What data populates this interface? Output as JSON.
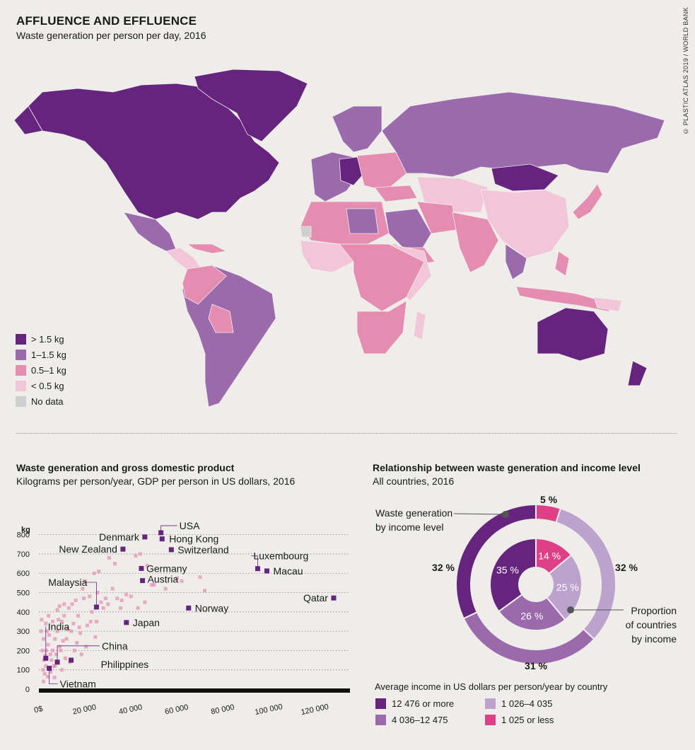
{
  "header": {
    "title": "AFFLUENCE AND EFFLUENCE",
    "subtitle": "Waste generation per person per day, 2016",
    "credit": "© PLASTIC ATLAS 2019 / WORLD BANK"
  },
  "colors": {
    "gt15": "#66247f",
    "c1_15": "#9a6aac",
    "c05_1": "#e58cb0",
    "lt05": "#f2c6d8",
    "nodata": "#cfcfcf",
    "hot": "#df3f86"
  },
  "map_legend": [
    {
      "label": "> 1.5 kg",
      "color": "#66247f"
    },
    {
      "label": "1–1.5 kg",
      "color": "#9a6aac"
    },
    {
      "label": "0.5–1 kg",
      "color": "#e58cb0"
    },
    {
      "label": "< 0.5 kg",
      "color": "#f2c6d8"
    },
    {
      "label": "No data",
      "color": "#cfcfcf"
    }
  ],
  "scatter": {
    "title": "Waste generation and gross domestic product",
    "subtitle": "Kilograms per person/year, GDP per person in US dollars, 2016",
    "ylabel": "kg"
  },
  "chart_data": [
    {
      "type": "scatter",
      "title": "Waste generation and gross domestic product",
      "subtitle": "Kilograms per person/year, GDP per person in US dollars, 2016",
      "xlabel": "",
      "ylabel": "kg",
      "xlim": [
        0,
        132000
      ],
      "ylim": [
        0,
        850
      ],
      "xticks": [
        0,
        20000,
        40000,
        60000,
        80000,
        100000,
        120000
      ],
      "xtick_labels": [
        "0$",
        "20 000",
        "40 000",
        "60 000",
        "80 000",
        "100 000",
        "120 000"
      ],
      "yticks": [
        0,
        100,
        200,
        300,
        400,
        500,
        600,
        700,
        800
      ],
      "labeled_points": [
        {
          "name": "USA",
          "x": 53000,
          "y": 810
        },
        {
          "name": "Hong Kong",
          "x": 53500,
          "y": 778
        },
        {
          "name": "Denmark",
          "x": 46000,
          "y": 788
        },
        {
          "name": "Switzerland",
          "x": 57500,
          "y": 722
        },
        {
          "name": "New Zealand",
          "x": 36500,
          "y": 725
        },
        {
          "name": "Luxembourg",
          "x": 95000,
          "y": 624
        },
        {
          "name": "Macau",
          "x": 99000,
          "y": 612
        },
        {
          "name": "Germany",
          "x": 44500,
          "y": 625
        },
        {
          "name": "Austria",
          "x": 45000,
          "y": 562
        },
        {
          "name": "Malaysia",
          "x": 25000,
          "y": 425
        },
        {
          "name": "Qatar",
          "x": 128000,
          "y": 472
        },
        {
          "name": "Norway",
          "x": 65000,
          "y": 420
        },
        {
          "name": "Japan",
          "x": 38000,
          "y": 345
        },
        {
          "name": "India",
          "x": 3000,
          "y": 160
        },
        {
          "name": "China",
          "x": 8000,
          "y": 140
        },
        {
          "name": "Philippines",
          "x": 14000,
          "y": 150
        },
        {
          "name": "Vietnam",
          "x": 4500,
          "y": 108
        }
      ],
      "other_points": [
        [
          2000,
          40
        ],
        [
          2500,
          80
        ],
        [
          3000,
          120
        ],
        [
          1500,
          200
        ],
        [
          2000,
          260
        ],
        [
          3500,
          300
        ],
        [
          4000,
          230
        ],
        [
          5000,
          180
        ],
        [
          6000,
          200
        ],
        [
          7000,
          260
        ],
        [
          8000,
          300
        ],
        [
          9000,
          220
        ],
        [
          10000,
          350
        ],
        [
          11000,
          380
        ],
        [
          12000,
          260
        ],
        [
          13000,
          420
        ],
        [
          14000,
          300
        ],
        [
          15000,
          340
        ],
        [
          16000,
          460
        ],
        [
          17000,
          380
        ],
        [
          18000,
          290
        ],
        [
          19000,
          520
        ],
        [
          20000,
          560
        ],
        [
          21000,
          330
        ],
        [
          22000,
          480
        ],
        [
          23000,
          400
        ],
        [
          24000,
          600
        ],
        [
          25000,
          350
        ],
        [
          27000,
          450
        ],
        [
          28000,
          420
        ],
        [
          30000,
          440
        ],
        [
          32000,
          520
        ],
        [
          34000,
          470
        ],
        [
          36000,
          460
        ],
        [
          38000,
          490
        ],
        [
          40000,
          480
        ],
        [
          42000,
          690
        ],
        [
          44000,
          700
        ],
        [
          47000,
          640
        ],
        [
          49000,
          540
        ],
        [
          50000,
          540
        ],
        [
          55000,
          520
        ],
        [
          60000,
          575
        ],
        [
          62000,
          560
        ],
        [
          70000,
          580
        ],
        [
          72000,
          510
        ],
        [
          3000,
          340
        ],
        [
          4500,
          280
        ],
        [
          5500,
          150
        ],
        [
          6500,
          120
        ],
        [
          7500,
          180
        ],
        [
          9500,
          200
        ],
        [
          11500,
          160
        ],
        [
          12500,
          310
        ],
        [
          13500,
          140
        ],
        [
          16500,
          240
        ],
        [
          18500,
          180
        ],
        [
          20500,
          220
        ],
        [
          8500,
          360
        ],
        [
          10500,
          250
        ],
        [
          15500,
          200
        ],
        [
          2200,
          150
        ],
        [
          3200,
          200
        ],
        [
          1800,
          100
        ],
        [
          5200,
          90
        ],
        [
          6800,
          60
        ],
        [
          3800,
          65
        ],
        [
          9000,
          430
        ],
        [
          14500,
          440
        ],
        [
          17500,
          320
        ],
        [
          26000,
          610
        ],
        [
          19500,
          470
        ],
        [
          30500,
          680
        ],
        [
          22500,
          350
        ],
        [
          33000,
          650
        ],
        [
          1000,
          300
        ],
        [
          1200,
          360
        ],
        [
          6000,
          350
        ],
        [
          4200,
          380
        ],
        [
          8000,
          410
        ],
        [
          25500,
          500
        ],
        [
          29000,
          470
        ],
        [
          11000,
          440
        ],
        [
          24500,
          270
        ],
        [
          35500,
          420
        ],
        [
          46000,
          450
        ],
        [
          43000,
          420
        ],
        [
          10000,
          100
        ],
        [
          7000,
          120
        ],
        [
          2800,
          175
        ]
      ]
    },
    {
      "type": "pie",
      "title": "Relationship between waste generation and income level",
      "subtitle": "All countries, 2016",
      "series": [
        {
          "name": "Waste generation by income level",
          "ring": "outer",
          "values": [
            {
              "category": "12 476 or more",
              "value": 32
            },
            {
              "category": "4 036–12 475",
              "value": 31
            },
            {
              "category": "1 026–4 035",
              "value": 32
            },
            {
              "category": "1 025 or less",
              "value": 5
            }
          ]
        },
        {
          "name": "Proportion of countries by income",
          "ring": "inner",
          "values": [
            {
              "category": "12 476 or more",
              "value": 35
            },
            {
              "category": "4 036–12 475",
              "value": 26
            },
            {
              "category": "1 026–4 035",
              "value": 25
            },
            {
              "category": "1 025 or less",
              "value": 14
            }
          ]
        }
      ],
      "colors": [
        "#66247f",
        "#9a6aac",
        "#bca2cc",
        "#df3f86"
      ]
    }
  ],
  "donut": {
    "title": "Relationship between waste generation and income level",
    "subtitle": "All countries, 2016",
    "outer_label": [
      "Waste generation",
      "by income level"
    ],
    "inner_label": [
      "Proportion",
      "of countries",
      "by income"
    ],
    "outer_pcts": [
      "32 %",
      "31 %",
      "32 %",
      "5 %"
    ],
    "inner_pcts": [
      "35 %",
      "26 %",
      "25 %",
      "14 %"
    ]
  },
  "income_legend": {
    "title": "Average income in US dollars per person/year by country",
    "items": [
      {
        "label": "12 476 or more",
        "color": "#66247f"
      },
      {
        "label": "4 036–12 475",
        "color": "#9a6aac"
      },
      {
        "label": "1 026–4 035",
        "color": "#bca2cc"
      },
      {
        "label": "1 025 or less",
        "color": "#df3f86"
      }
    ]
  }
}
